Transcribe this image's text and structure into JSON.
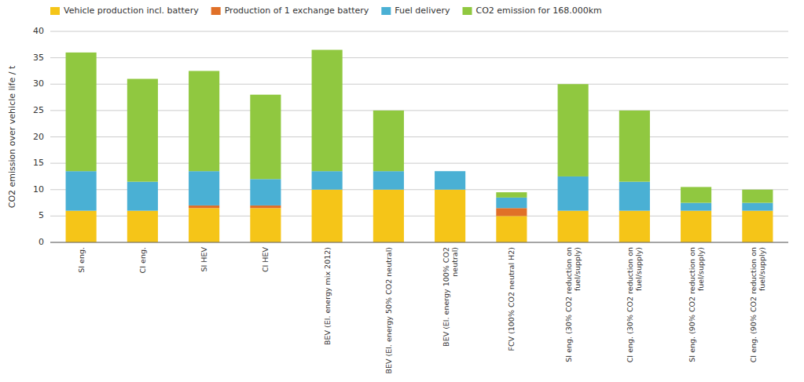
{
  "chart_data": {
    "type": "bar",
    "stacked": true,
    "grid": true,
    "legend": "upper left",
    "y_label": "CO2 emission over vehicle life / t",
    "categories": [
      "SI eng.",
      "CI eng.",
      "SI HEV",
      "CI HEV",
      "BEV (El. energy mix 2012)",
      "BEV (El. energy 50% CO2 neutral)",
      "BEV (El. energy 100% CO2\nneutral)",
      "FCV (100% CO2 neutral H2)",
      "SI eng. (30% CO2 reduction on\nfuel/supply)",
      "CI eng. (30% CO2 reduction on\nfuel/supply)",
      "SI eng. (90% CO2 reduction on\nfuel/supply)",
      "CI eng. (90% CO2 reduction on\nfuel/supply)"
    ],
    "series": [
      {
        "name": "Vehicle production incl. battery",
        "color": "#f5c518",
        "values": [
          6.0,
          6.0,
          6.5,
          6.5,
          10.0,
          10.0,
          10.0,
          5.0,
          6.0,
          6.0,
          6.0,
          6.0
        ]
      },
      {
        "name": "Production of 1 exchange battery",
        "color": "#e07028",
        "values": [
          0.0,
          0.0,
          0.5,
          0.5,
          0.0,
          0.0,
          0.0,
          1.5,
          0.0,
          0.0,
          0.0,
          0.0
        ]
      },
      {
        "name": "Fuel delivery",
        "color": "#4ab0d4",
        "values": [
          7.5,
          5.5,
          6.5,
          5.0,
          3.5,
          3.5,
          3.5,
          2.0,
          6.5,
          5.5,
          1.5,
          1.5
        ]
      },
      {
        "name": "CO2 emission for 168.000km",
        "color": "#90c840",
        "values": [
          22.5,
          19.5,
          19.0,
          16.0,
          23.0,
          11.5,
          0.0,
          1.0,
          17.5,
          13.5,
          3.0,
          2.5
        ]
      }
    ],
    "ylim": [
      0,
      40
    ],
    "yticks": [
      0,
      5,
      10,
      15,
      20,
      25,
      30,
      35,
      40
    ]
  }
}
